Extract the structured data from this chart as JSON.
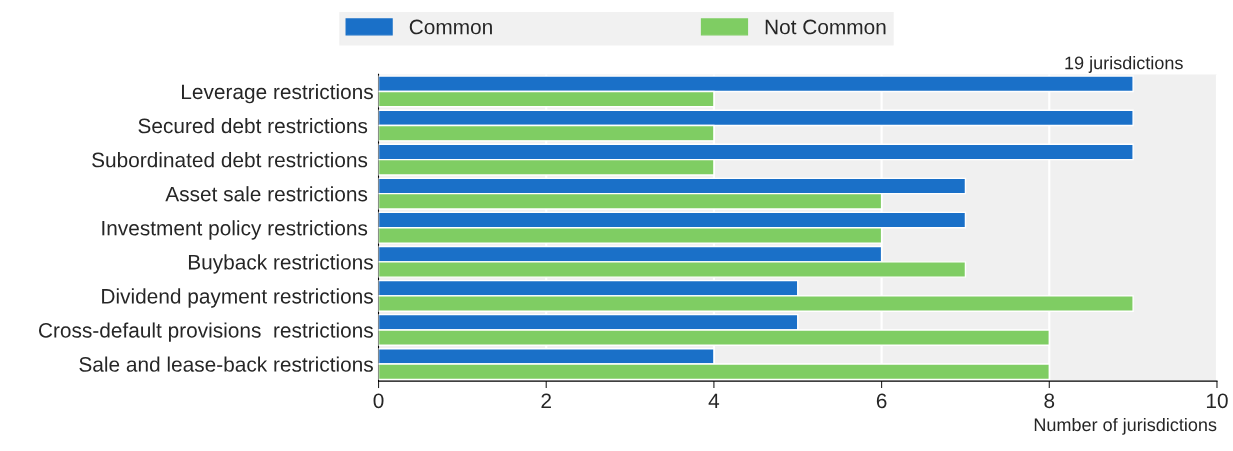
{
  "chart_data": {
    "type": "bar",
    "orientation": "horizontal",
    "categories": [
      "Leverage restrictions",
      "Secured debt restrictions ",
      "Subordinated debt restrictions ",
      "Asset sale restrictions ",
      "Investment policy restrictions ",
      "Buyback restrictions",
      "Dividend payment restrictions",
      "Cross-default provisions  restrictions",
      "Sale and lease-back restrictions"
    ],
    "series": [
      {
        "name": "Common",
        "color": "#1a70c8",
        "values": [
          9,
          9,
          9,
          7,
          7,
          6,
          5,
          5,
          4
        ]
      },
      {
        "name": "Not Common",
        "color": "#7fcd63",
        "values": [
          4,
          4,
          4,
          6,
          6,
          7,
          9,
          8,
          8
        ]
      }
    ],
    "xlim": [
      0,
      10
    ],
    "xticks": [
      0,
      2,
      4,
      6,
      8,
      10
    ],
    "xlabel": "Number of jurisdictions",
    "annotations": [
      "19 jurisdictions"
    ],
    "grid": "x",
    "legend": "top"
  }
}
